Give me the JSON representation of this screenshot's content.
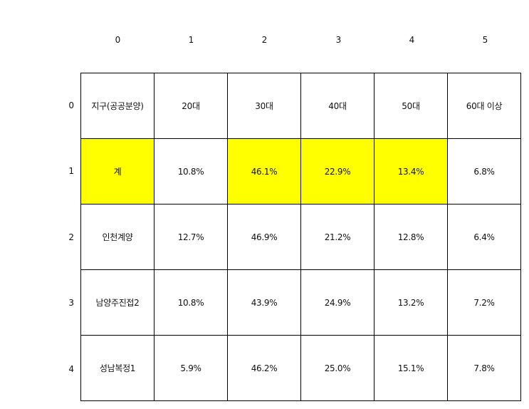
{
  "column_indices": [
    "0",
    "1",
    "2",
    "3",
    "4",
    "5"
  ],
  "row_indices": [
    "0",
    "1",
    "2",
    "3",
    "4"
  ],
  "highlight_color": "#ffff00",
  "table": {
    "rows": [
      [
        "지구(공공분양)",
        "20대",
        "30대",
        "40대",
        "50대",
        "60대 이상"
      ],
      [
        "계",
        "10.8%",
        "46.1%",
        "22.9%",
        "13.4%",
        "6.8%"
      ],
      [
        "인천계양",
        "12.7%",
        "46.9%",
        "21.2%",
        "12.8%",
        "6.4%"
      ],
      [
        "남양주진접2",
        "10.8%",
        "43.9%",
        "24.9%",
        "13.2%",
        "7.2%"
      ],
      [
        "성남복정1",
        "5.9%",
        "46.2%",
        "25.0%",
        "15.1%",
        "7.8%"
      ]
    ]
  }
}
